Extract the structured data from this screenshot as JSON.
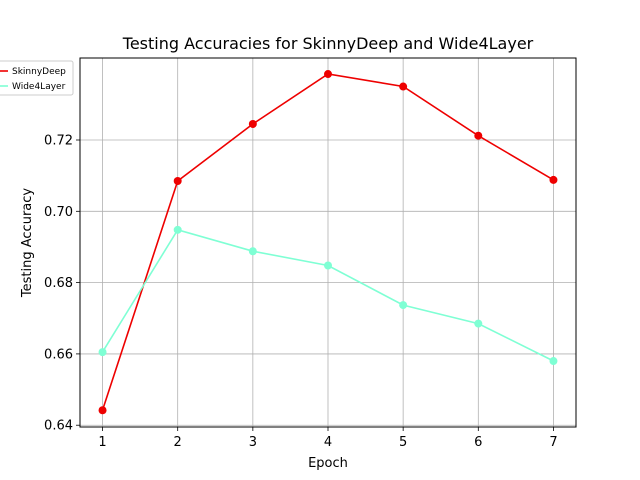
{
  "chart_data": {
    "type": "line",
    "title": "Testing Accuracies for SkinnyDeep and Wide4Layer",
    "xlabel": "Epoch",
    "ylabel": "Testing Accuracy",
    "x": [
      1,
      2,
      3,
      4,
      5,
      6,
      7
    ],
    "xlim": [
      0.7,
      7.3
    ],
    "ylim": [
      0.6395,
      0.743
    ],
    "yticks": [
      0.64,
      0.66,
      0.68,
      0.7,
      0.72
    ],
    "ytick_labels": [
      "0.64",
      "0.66",
      "0.68",
      "0.70",
      "0.72"
    ],
    "xticks": [
      1,
      2,
      3,
      4,
      5,
      6,
      7
    ],
    "xtick_labels": [
      "1",
      "2",
      "3",
      "4",
      "5",
      "6",
      "7"
    ],
    "grid": true,
    "legend_position": "top-left",
    "series": [
      {
        "name": "SkinnyDeep",
        "color": "#ee0000",
        "values": [
          0.6442,
          0.7085,
          0.7245,
          0.7385,
          0.735,
          0.7212,
          0.7088
        ]
      },
      {
        "name": "Wide4Layer",
        "color": "#7fffd4",
        "values": [
          0.6605,
          0.6948,
          0.6888,
          0.6848,
          0.6737,
          0.6685,
          0.658
        ]
      }
    ]
  }
}
